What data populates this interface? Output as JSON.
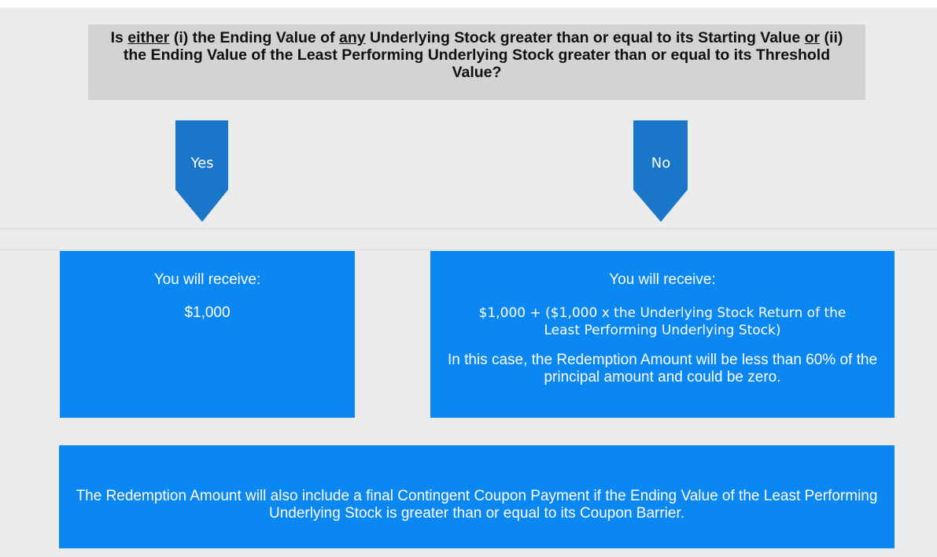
{
  "question": {
    "parts": [
      "Is ",
      "either",
      " (i) the Ending Value of ",
      "any",
      " Underlying Stock greater than or equal to its Starting Value ",
      "or",
      " (ii) the Ending Value of the Least Performing Underlying Stock greater than or equal to its Threshold Value?"
    ]
  },
  "branches": [
    {
      "label": "Yes",
      "heading": "You will receive:",
      "lines": [
        "$1,000"
      ]
    },
    {
      "label": "No",
      "heading": "You will receive:",
      "lines": [
        "$1,000 + ($1,000 x the Underlying Stock Return of the Least Performing Underlying Stock)",
        "In this case, the Redemption Amount will be less than 60% of the principal amount and could be zero."
      ]
    }
  ],
  "footer": "The Redemption Amount will also include a final Contingent Coupon Payment if the Ending Value of the Least Performing Underlying Stock is greater than or equal to its Coupon Barrier."
}
